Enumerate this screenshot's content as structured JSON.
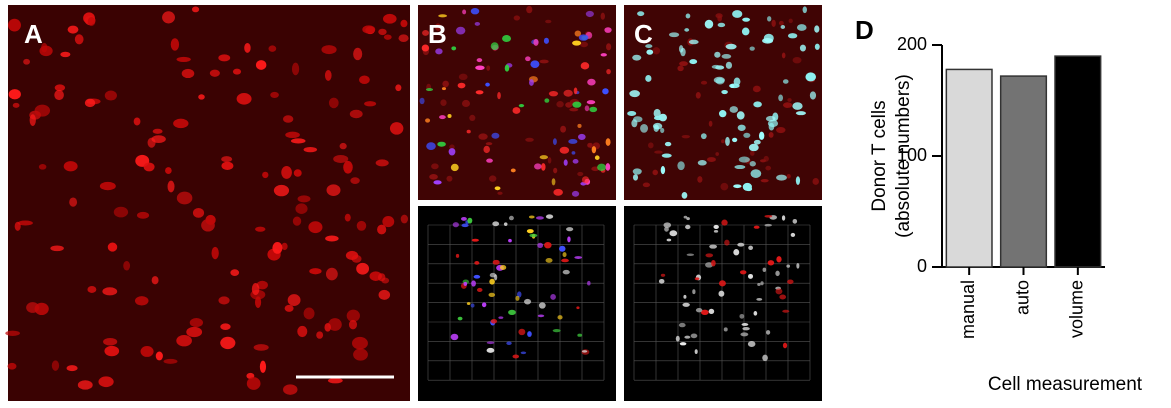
{
  "panels": [
    {
      "label": "A"
    },
    {
      "label": "B"
    },
    {
      "label": "C"
    },
    {
      "label": "D"
    }
  ],
  "chart_data": {
    "type": "bar",
    "categories": [
      "manual",
      "auto",
      "volume"
    ],
    "values": [
      178,
      172,
      190
    ],
    "colors": [
      "#d9d9d9",
      "#737373",
      "#000000"
    ],
    "ylabel": [
      "Donor T cells",
      "(absolute numbers)"
    ],
    "xlabel": "Cell measurement",
    "ylim": [
      0,
      200
    ],
    "yticks": [
      0,
      100,
      200
    ],
    "grid": false
  }
}
